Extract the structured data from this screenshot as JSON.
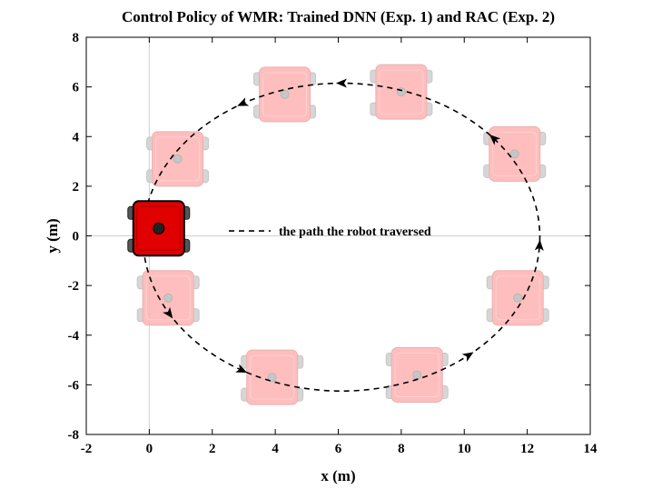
{
  "chart_data": {
    "type": "line",
    "title": "Control Policy of WMR: Trained DNN (Exp. 1) and RAC (Exp. 2)",
    "xlabel": "x (m)",
    "ylabel": "y (m)",
    "xlim": [
      -2,
      14
    ],
    "ylim": [
      -8,
      8
    ],
    "xticks": [
      -2,
      0,
      2,
      4,
      6,
      8,
      10,
      12,
      14
    ],
    "yticks": [
      -8,
      -6,
      -4,
      -2,
      0,
      2,
      4,
      6,
      8
    ],
    "xtick_labels": [
      "-2",
      "0",
      "2",
      "4",
      "6",
      "8",
      "10",
      "12",
      "14"
    ],
    "ytick_labels": [
      "-8",
      "-6",
      "-4",
      "-2",
      "0",
      "2",
      "4",
      "6",
      "8"
    ],
    "grid": false,
    "reference_lines": [
      {
        "axis": "x",
        "value": 0
      },
      {
        "axis": "y",
        "value": 0
      }
    ],
    "series": [
      {
        "name": "the path the robot traversed",
        "style": "dashed",
        "color": "#000000",
        "path": {
          "shape": "ellipse",
          "center": [
            6.1,
            -0.05
          ],
          "radius_x": 6.3,
          "radius_y": 6.2
        },
        "arrow_headings_deg": [
          40,
          90,
          120,
          170,
          210,
          240,
          310,
          357
        ]
      }
    ],
    "legend": {
      "position": "center-left-inside"
    },
    "robots": {
      "current": {
        "x": 0.3,
        "y": 0.3,
        "color": "#e00000"
      },
      "ghost_color": "#ffb3b3",
      "ghosts": [
        {
          "x": 0.9,
          "y": 3.1
        },
        {
          "x": 4.3,
          "y": 5.7
        },
        {
          "x": 8.0,
          "y": 5.8
        },
        {
          "x": 11.6,
          "y": 3.3
        },
        {
          "x": 11.7,
          "y": -2.5
        },
        {
          "x": 8.5,
          "y": -5.6
        },
        {
          "x": 3.9,
          "y": -5.7
        },
        {
          "x": 0.6,
          "y": -2.5
        }
      ]
    }
  }
}
